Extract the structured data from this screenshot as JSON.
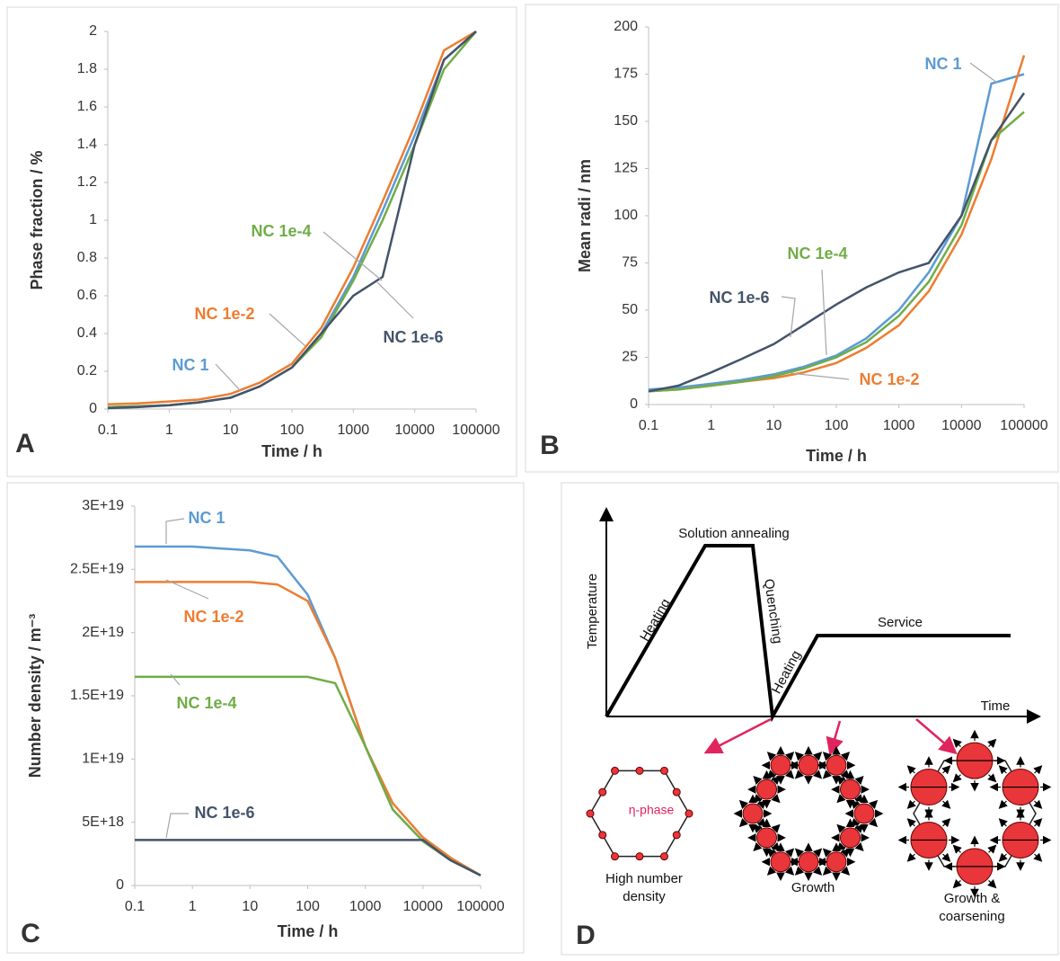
{
  "chart_data": [
    {
      "type": "line",
      "panel_label": "A",
      "x_label": "Time / h",
      "y_label": "Phase fraction / %",
      "xscale": "log",
      "x": [
        0.1,
        0.3,
        1,
        3,
        10,
        30,
        100,
        300,
        1000,
        3000,
        10000,
        30000,
        100000
      ],
      "xlim": [
        0.1,
        100000
      ],
      "xticks": [
        0.1,
        1,
        10,
        100,
        1000,
        10000,
        100000
      ],
      "ylim": [
        0,
        2
      ],
      "yticks": [
        0,
        0.2,
        0.4,
        0.6,
        0.8,
        1,
        1.2,
        1.4,
        1.6,
        1.8,
        2
      ],
      "series": [
        {
          "name": "NC 1",
          "color": "#5b9bd5",
          "values": [
            0.01,
            0.015,
            0.02,
            0.035,
            0.06,
            0.12,
            0.22,
            0.4,
            0.7,
            1.05,
            1.45,
            1.85,
            2.0
          ]
        },
        {
          "name": "NC 1e-2",
          "color": "#ed7d31",
          "values": [
            0.025,
            0.03,
            0.04,
            0.05,
            0.08,
            0.14,
            0.24,
            0.43,
            0.75,
            1.1,
            1.5,
            1.9,
            2.0
          ]
        },
        {
          "name": "NC 1e-4",
          "color": "#70ad47",
          "values": [
            0.01,
            0.015,
            0.02,
            0.035,
            0.06,
            0.12,
            0.22,
            0.38,
            0.68,
            1.0,
            1.4,
            1.8,
            2.0
          ]
        },
        {
          "name": "NC 1e-6",
          "color": "#44546a",
          "values": [
            0.005,
            0.01,
            0.02,
            0.035,
            0.06,
            0.12,
            0.22,
            0.4,
            0.6,
            0.7,
            1.4,
            1.85,
            2.0
          ]
        }
      ]
    },
    {
      "type": "line",
      "panel_label": "B",
      "x_label": "Time / h",
      "y_label": "Mean radi / nm",
      "xscale": "log",
      "x": [
        0.1,
        0.3,
        1,
        3,
        10,
        30,
        100,
        300,
        1000,
        3000,
        10000,
        30000,
        100000
      ],
      "xlim": [
        0.1,
        100000
      ],
      "xticks": [
        0.1,
        1,
        10,
        100,
        1000,
        10000,
        100000
      ],
      "ylim": [
        0,
        200
      ],
      "yticks": [
        0,
        25,
        50,
        75,
        100,
        125,
        150,
        175,
        200
      ],
      "series": [
        {
          "name": "NC 1",
          "color": "#5b9bd5",
          "values": [
            8,
            9,
            11,
            13,
            16,
            20,
            26,
            35,
            50,
            70,
            100,
            170,
            175
          ]
        },
        {
          "name": "NC 1e-2",
          "color": "#ed7d31",
          "values": [
            7,
            8,
            10,
            12,
            14,
            17,
            22,
            30,
            42,
            60,
            90,
            130,
            185
          ]
        },
        {
          "name": "NC 1e-4",
          "color": "#70ad47",
          "values": [
            7,
            8,
            10,
            12,
            15,
            19,
            25,
            33,
            47,
            65,
            95,
            140,
            155
          ]
        },
        {
          "name": "NC 1e-6",
          "color": "#44546a",
          "values": [
            7,
            10,
            17,
            24,
            32,
            42,
            53,
            62,
            70,
            75,
            100,
            140,
            165
          ]
        }
      ]
    },
    {
      "type": "line",
      "panel_label": "C",
      "x_label": "Time / h",
      "y_label": "Number density / m⁻³",
      "xscale": "log",
      "x": [
        0.1,
        1,
        10,
        30,
        100,
        300,
        1000,
        3000,
        10000,
        30000,
        100000
      ],
      "xlim": [
        0.1,
        100000
      ],
      "xticks": [
        0.1,
        1,
        10,
        100,
        1000,
        10000,
        100000
      ],
      "ylim": [
        0,
        3e+19
      ],
      "yticks": [
        0,
        {
          "value": 5e+18,
          "label": "5E+18"
        },
        {
          "value": 1e+19,
          "label": "1E+19"
        },
        {
          "value": 1.5e+19,
          "label": "1.5E+19"
        },
        {
          "value": 2e+19,
          "label": "2E+19"
        },
        {
          "value": 2.5e+19,
          "label": "2.5E+19"
        },
        {
          "value": 3e+19,
          "label": "3E+19"
        }
      ],
      "series": [
        {
          "name": "NC 1",
          "color": "#5b9bd5",
          "values": [
            2.68e+19,
            2.68e+19,
            2.65e+19,
            2.6e+19,
            2.3e+19,
            1.8e+19,
            1.1e+19,
            6e+18,
            3.5e+18,
            2e+18,
            8e+17
          ]
        },
        {
          "name": "NC 1e-2",
          "color": "#ed7d31",
          "values": [
            2.4e+19,
            2.4e+19,
            2.4e+19,
            2.38e+19,
            2.25e+19,
            1.8e+19,
            1.1e+19,
            6.5e+18,
            3.8e+18,
            2.2e+18,
            8e+17
          ]
        },
        {
          "name": "NC 1e-4",
          "color": "#70ad47",
          "values": [
            1.65e+19,
            1.65e+19,
            1.65e+19,
            1.65e+19,
            1.65e+19,
            1.6e+19,
            1.1e+19,
            6e+18,
            3.5e+18,
            2e+18,
            8e+17
          ]
        },
        {
          "name": "NC 1e-6",
          "color": "#44546a",
          "values": [
            3.6e+18,
            3.6e+18,
            3.6e+18,
            3.6e+18,
            3.6e+18,
            3.6e+18,
            3.6e+18,
            3.6e+18,
            3.6e+18,
            2e+18,
            8e+17
          ]
        }
      ]
    }
  ],
  "diagram": {
    "panel_label": "D",
    "axis_y": "Temperature",
    "axis_x": "Time",
    "steps": [
      "Heating",
      "Solution annealing",
      "Quenching",
      "Heating",
      "Service"
    ],
    "phase_label": "η-phase",
    "stages": [
      [
        "High number",
        "density"
      ],
      [
        "Growth"
      ],
      [
        "Growth &",
        "coarsening"
      ]
    ]
  }
}
